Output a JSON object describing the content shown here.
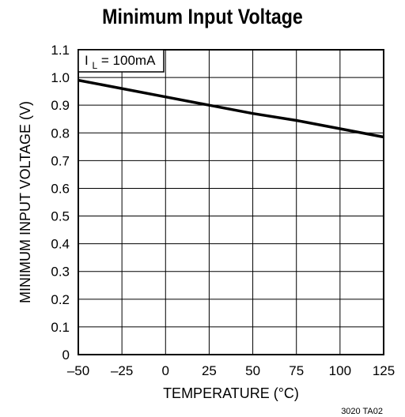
{
  "chart_data": {
    "type": "line",
    "title": "Minimum Input Voltage",
    "xlabel": "TEMPERATURE (°C)",
    "ylabel": "MINIMUM INPUT VOLTAGE (V)",
    "xlim": [
      -50,
      125
    ],
    "ylim": [
      0,
      1.1
    ],
    "x_ticks": [
      "–50",
      "–25",
      "0",
      "25",
      "50",
      "75",
      "100",
      "125"
    ],
    "y_ticks": [
      "0",
      "0.1",
      "0.2",
      "0.3",
      "0.4",
      "0.5",
      "0.6",
      "0.7",
      "0.8",
      "0.9",
      "1.0",
      "1.1"
    ],
    "grid": true,
    "annotation": {
      "main": "I",
      "subscript": "L",
      "value": " = 100mA"
    },
    "series": [
      {
        "x": [
          -50,
          -25,
          0,
          25,
          50,
          75,
          100,
          125
        ],
        "y": [
          0.99,
          0.96,
          0.93,
          0.9,
          0.87,
          0.845,
          0.815,
          0.785
        ]
      }
    ],
    "figure_id": "3020 TA02"
  }
}
